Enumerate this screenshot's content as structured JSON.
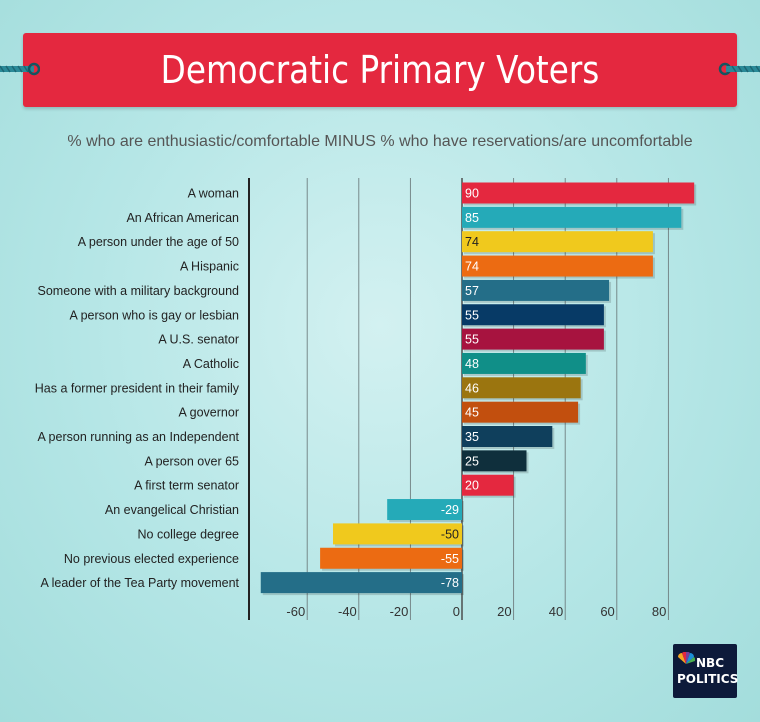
{
  "header": {
    "title": "Democratic Primary Voters",
    "subtitle": "% who are enthusiastic/comfortable MINUS % who have reservations/are uncomfortable"
  },
  "logo": {
    "line1": "NBC",
    "line2": "POLITICS"
  },
  "chart_data": {
    "type": "bar",
    "orientation": "horizontal",
    "title": "Democratic Primary Voters",
    "subtitle": "% who are enthusiastic/comfortable MINUS % who have reservations/are uncomfortable",
    "categories": [
      "A woman",
      "An African American",
      "A person under the age of 50",
      "A Hispanic",
      "Someone with a military background",
      "A person who is gay or lesbian",
      "A U.S. senator",
      "A Catholic",
      "Has a former president in their family",
      "A governor",
      "A person running as an Independent",
      "A person over 65",
      "A first term senator",
      "An evangelical Christian",
      "No college degree",
      "No previous elected experience",
      "A leader of the Tea Party movement"
    ],
    "values": [
      90,
      85,
      74,
      74,
      57,
      55,
      55,
      48,
      46,
      45,
      35,
      25,
      20,
      -29,
      -50,
      -55,
      -78
    ],
    "data_labels": [
      "90",
      "85",
      "74",
      "74",
      "57",
      "55",
      "55",
      "48",
      "46",
      "45",
      "35",
      "25",
      "20",
      "-29",
      "-50",
      "-55",
      "-78"
    ],
    "colors": [
      "#e4283f",
      "#25aab8",
      "#f0c91d",
      "#ec6b12",
      "#246e88",
      "#073a66",
      "#a7133f",
      "#108f88",
      "#9b750f",
      "#c24f0e",
      "#0f3f5c",
      "#0f2f3c",
      "#e4283f",
      "#25aab8",
      "#f0c91d",
      "#ec6b12",
      "#246e88"
    ],
    "label_dark_text": [
      false,
      false,
      true,
      false,
      false,
      false,
      false,
      false,
      false,
      false,
      false,
      false,
      false,
      false,
      true,
      false,
      false
    ],
    "xticks": [
      -60,
      -40,
      -20,
      0,
      20,
      40,
      60,
      80
    ],
    "xtick_labels": [
      "-60",
      "-40",
      "-20",
      "0",
      "20",
      "40",
      "60",
      "80"
    ],
    "xlim": [
      -80,
      90
    ],
    "grid": true,
    "legend": "none"
  }
}
